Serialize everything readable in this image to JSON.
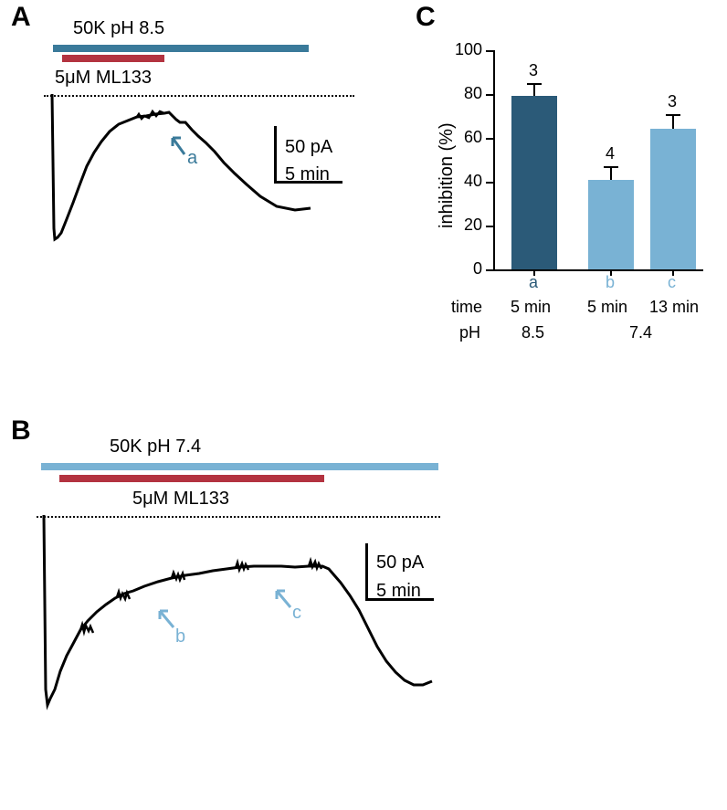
{
  "panelA": {
    "label": "A",
    "condition_top": "50K     pH 8.5",
    "drug_label": "5μM ML133",
    "top_bar_color": "#3a7a9a",
    "drug_bar_color": "#b33340",
    "scale_v_label": "50 pA",
    "scale_h_label": "5 min",
    "arrow_label": "a",
    "arrow_color": "#3a7a9a"
  },
  "panelB": {
    "label": "B",
    "condition_top": "50K       pH 7.4",
    "drug_label": "5μM ML133",
    "top_bar_color": "#79b2d4",
    "drug_bar_color": "#b33340",
    "scale_v_label": "50 pA",
    "scale_h_label": "5 min",
    "arrow_b_label": "b",
    "arrow_c_label": "c",
    "arrow_color": "#79b2d4"
  },
  "panelC": {
    "label": "C",
    "y_axis_label": "inhibition (%)",
    "y_ticks": [
      "0",
      "20",
      "40",
      "60",
      "80",
      "100"
    ],
    "bars": [
      {
        "label": "a",
        "n": "3",
        "value": 79,
        "error": 6,
        "color": "#2b5a78",
        "label_color": "#2b5a78"
      },
      {
        "label": "b",
        "n": "4",
        "value": 41,
        "error": 6,
        "color": "#79b2d4",
        "label_color": "#79b2d4"
      },
      {
        "label": "c",
        "n": "3",
        "value": 64,
        "error": 7,
        "color": "#79b2d4",
        "label_color": "#79b2d4"
      }
    ],
    "time_row_label": "time",
    "time_values": [
      "5 min",
      "5 min",
      "13 min"
    ],
    "ph_row_label": "pH",
    "ph_values": [
      "8.5",
      "7.4"
    ]
  }
}
